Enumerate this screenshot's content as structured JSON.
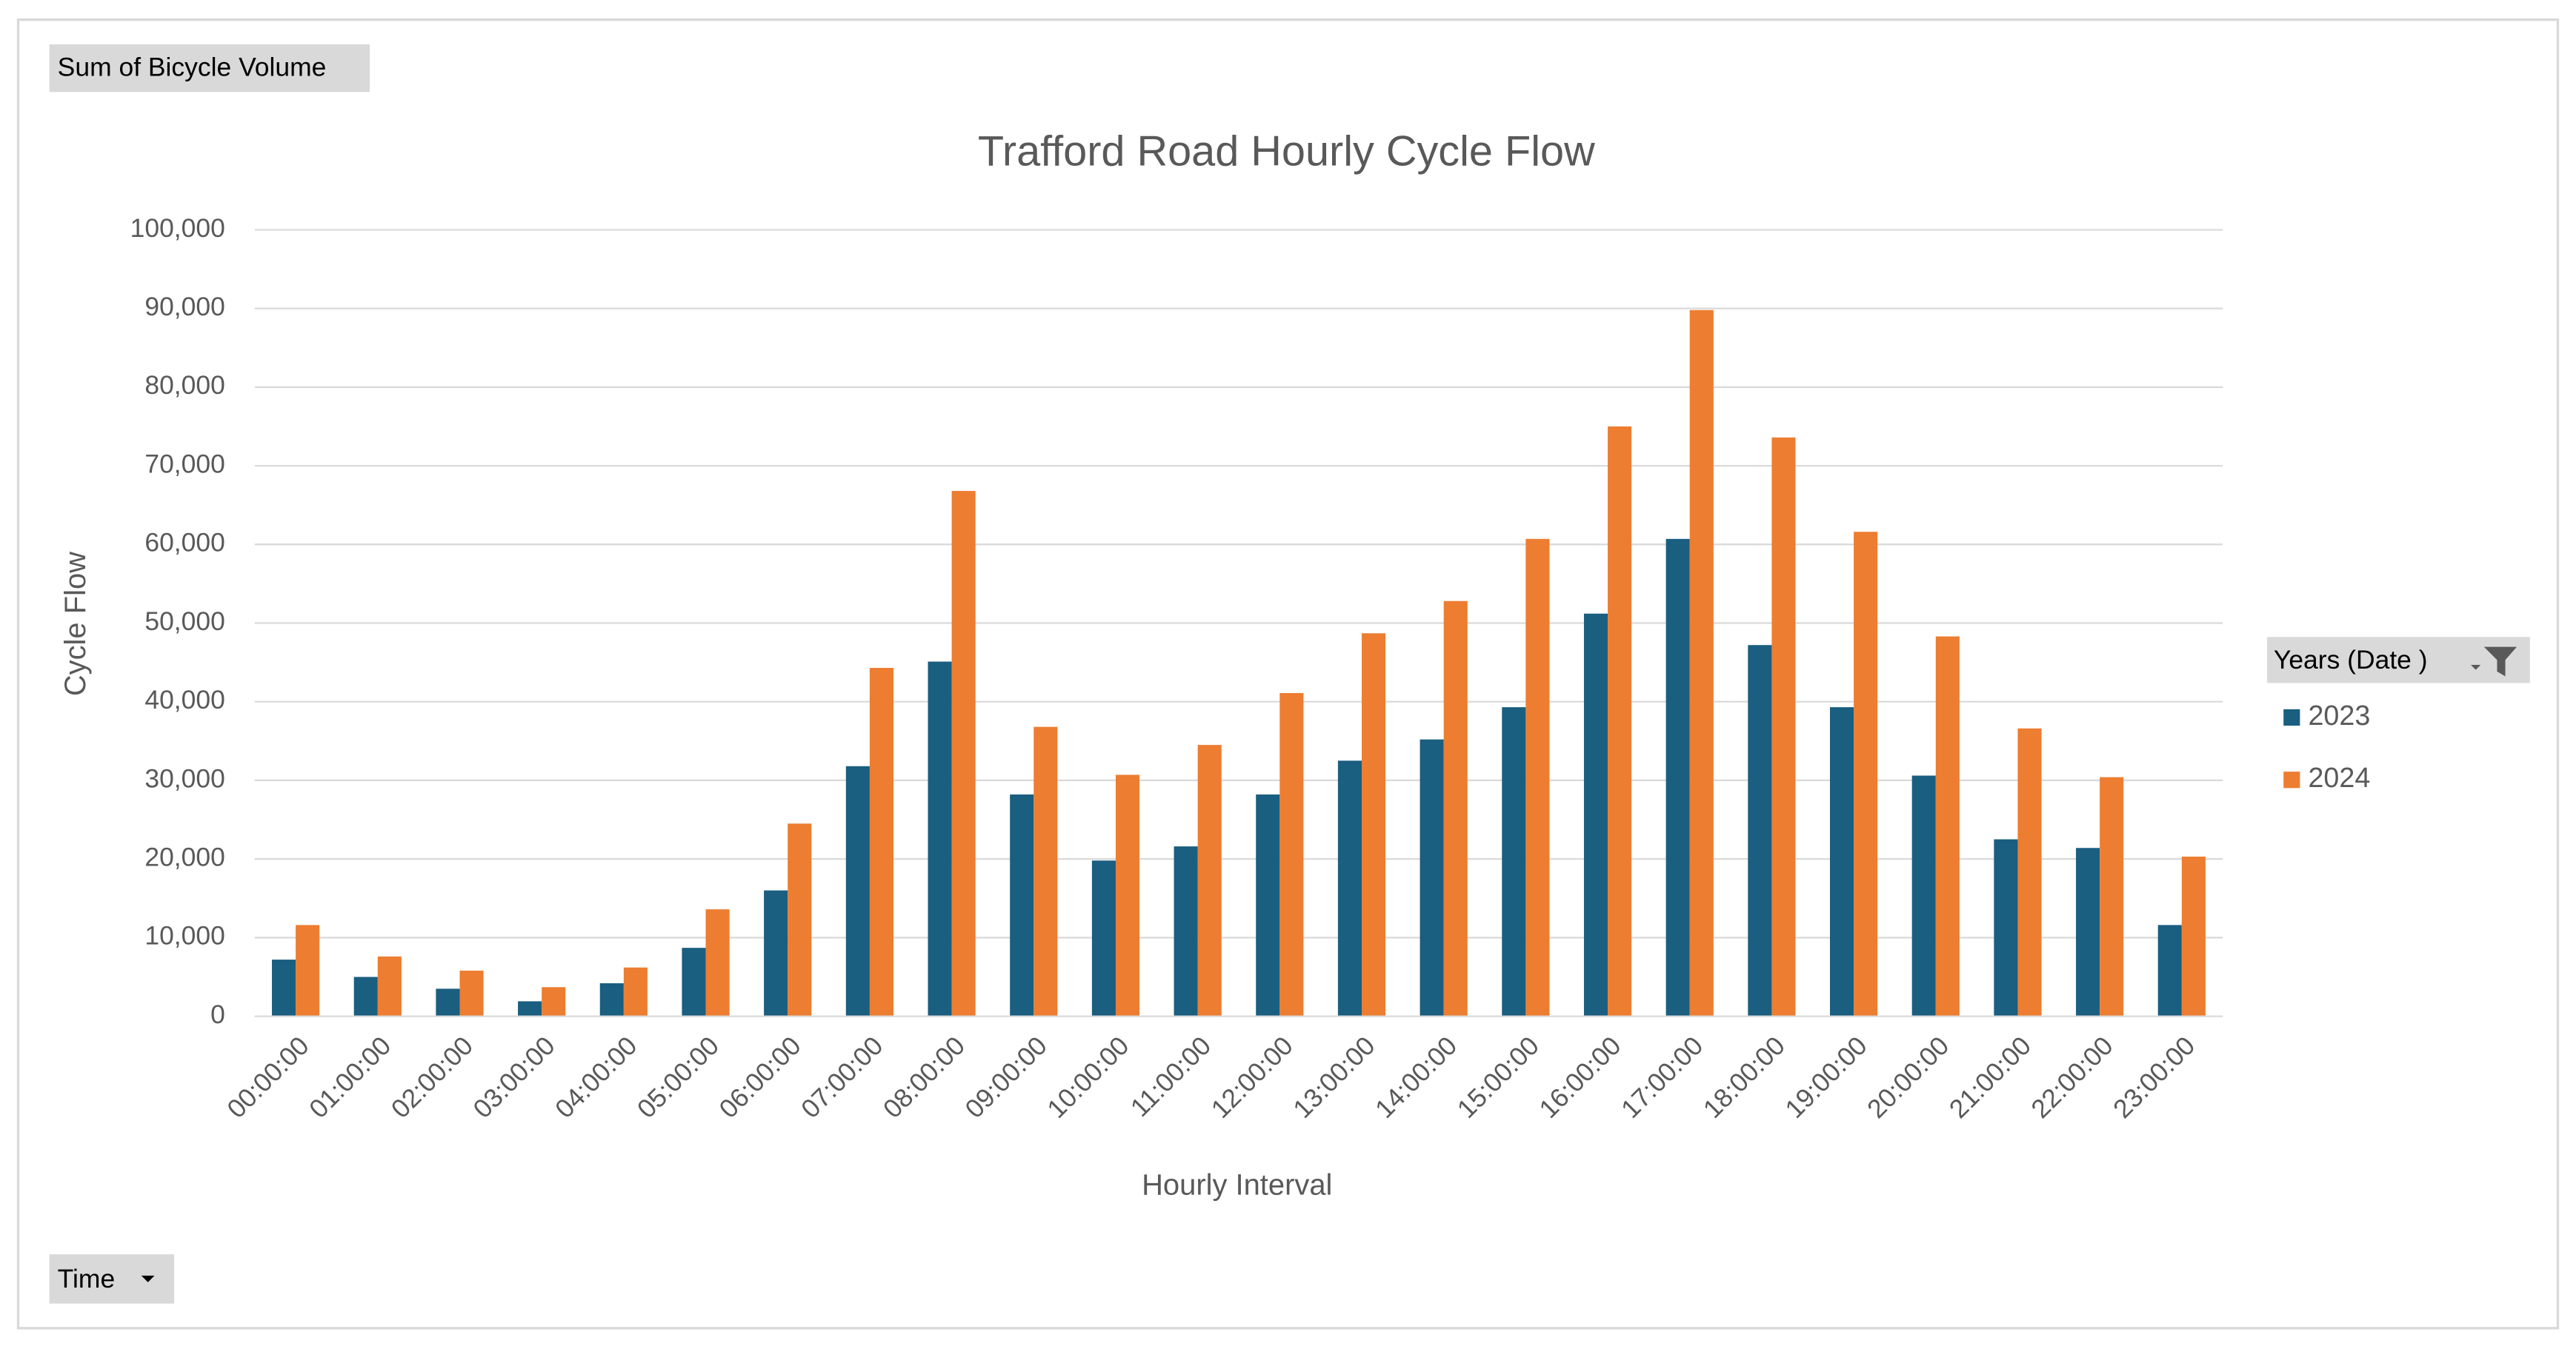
{
  "pivot_buttons": {
    "values_field": "Sum of Bicycle Volume",
    "axis_field": "Time"
  },
  "chart_data": {
    "type": "bar",
    "title": "Trafford Road Hourly Cycle Flow",
    "x_label": "Hourly Interval",
    "y_label": "Cycle Flow",
    "legend_title": "Years (Date )",
    "legend_position": "right",
    "grid": true,
    "categories": [
      "00:00:00",
      "01:00:00",
      "02:00:00",
      "03:00:00",
      "04:00:00",
      "05:00:00",
      "06:00:00",
      "07:00:00",
      "08:00:00",
      "09:00:00",
      "10:00:00",
      "11:00:00",
      "12:00:00",
      "13:00:00",
      "14:00:00",
      "15:00:00",
      "16:00:00",
      "17:00:00",
      "18:00:00",
      "19:00:00",
      "20:00:00",
      "21:00:00",
      "22:00:00",
      "23:00:00"
    ],
    "series": [
      {
        "name": "2023",
        "color": "#1a5e80",
        "values": [
          7200,
          5000,
          3500,
          1900,
          4200,
          8700,
          16000,
          31800,
          45100,
          28200,
          19800,
          21600,
          28200,
          32500,
          35200,
          39300,
          51200,
          60700,
          47200,
          39300,
          30600,
          22500,
          21400,
          11600
        ]
      },
      {
        "name": "2024",
        "color": "#ed7d31",
        "values": [
          11600,
          7600,
          5800,
          3700,
          6200,
          13600,
          24500,
          44300,
          66800,
          36800,
          30700,
          34500,
          41100,
          48700,
          52800,
          60700,
          75000,
          89800,
          73600,
          61600,
          48300,
          36600,
          30400,
          20300
        ]
      }
    ],
    "ylim": [
      0,
      100000
    ],
    "yticks": [
      0,
      {
        "value": 10000,
        "label": "10,000"
      },
      {
        "value": 20000,
        "label": "20,000"
      },
      {
        "value": 30000,
        "label": "30,000"
      },
      {
        "value": 40000,
        "label": "40,000"
      },
      {
        "value": 50000,
        "label": "50,000"
      },
      {
        "value": 60000,
        "label": "60,000"
      },
      {
        "value": 70000,
        "label": "70,000"
      },
      {
        "value": 80000,
        "label": "80,000"
      },
      {
        "value": 90000,
        "label": "90,000"
      },
      {
        "value": 100000,
        "label": "100,000"
      }
    ]
  }
}
